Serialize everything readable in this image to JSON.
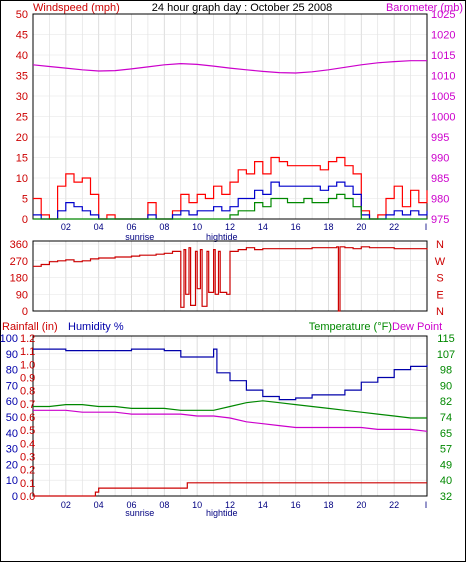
{
  "chart_data": [
    {
      "type": "line",
      "title": "24 hour graph day : October 25 2008",
      "left_axis_label": "Windspeed (mph)",
      "right_axis_label": "Barometer (mb)",
      "ylim_left": [
        0,
        50
      ],
      "ylim_right": [
        975,
        1025
      ],
      "yticks_left": [
        "0",
        "5",
        "10",
        "15",
        "20",
        "25",
        "30",
        "35",
        "40",
        "45",
        "50"
      ],
      "yticks_right": [
        "975",
        "980",
        "985",
        "990",
        "995",
        "1000",
        "1005",
        "1010",
        "1015",
        "1020",
        "1025"
      ],
      "x_ticks": [
        "02",
        "04",
        "06",
        "08",
        "10",
        "12",
        "14",
        "16",
        "18",
        "20",
        "22"
      ],
      "x_end_tick": "I",
      "marker_labels": {
        "sunrise": "sunrise",
        "hightide": "hightide"
      },
      "grid": true,
      "colors": {
        "wind_gust": "#ff0000",
        "wind_avg": "#0000cc",
        "wind_low": "#008800",
        "barometer": "#cc00cc"
      },
      "series": [
        {
          "axis": "right",
          "x": [
            0,
            1,
            2,
            3,
            4,
            5,
            6,
            7,
            8,
            9,
            10,
            11,
            12,
            13,
            14,
            15,
            16,
            17,
            18,
            19,
            20,
            21,
            22,
            23,
            24
          ],
          "values": [
            1012.6,
            1012.2,
            1011.8,
            1011.4,
            1011.1,
            1011.2,
            1011.6,
            1012.1,
            1012.6,
            1012.9,
            1012.7,
            1012.3,
            1011.8,
            1011.4,
            1011.0,
            1010.7,
            1010.6,
            1010.9,
            1011.4,
            1012.0,
            1012.6,
            1013.1,
            1013.4,
            1013.6,
            1013.6
          ]
        },
        {
          "axis": "left",
          "x": [
            0,
            0.5,
            1,
            1.5,
            2,
            2.5,
            3,
            3.5,
            4,
            4.5,
            5,
            5.5,
            6,
            6.5,
            7,
            7.5,
            8,
            8.5,
            9,
            9.5,
            10,
            10.5,
            11,
            11.5,
            12,
            12.5,
            13,
            13.5,
            14,
            14.5,
            15,
            15.5,
            16,
            16.5,
            17,
            17.5,
            18,
            18.5,
            19,
            19.5,
            20,
            20.5,
            21,
            21.5,
            22,
            22.5,
            23,
            23.5,
            24
          ],
          "values": [
            5,
            1,
            0,
            8,
            11,
            9,
            10,
            6,
            0,
            1,
            0,
            0,
            0,
            0,
            4,
            0,
            0,
            2,
            6,
            4,
            6,
            5,
            8,
            6,
            9,
            12,
            11,
            14,
            11,
            15,
            14,
            13,
            13,
            13,
            13,
            12,
            14,
            15,
            13,
            11,
            2,
            0,
            1,
            5,
            8,
            3,
            7,
            4,
            7
          ]
        },
        {
          "axis": "left",
          "x": [
            0,
            0.5,
            1,
            1.5,
            2,
            2.5,
            3,
            3.5,
            4,
            4.5,
            5,
            5.5,
            6,
            6.5,
            7,
            7.5,
            8,
            8.5,
            9,
            9.5,
            10,
            10.5,
            11,
            11.5,
            12,
            12.5,
            13,
            13.5,
            14,
            14.5,
            15,
            15.5,
            16,
            16.5,
            17,
            17.5,
            18,
            18.5,
            19,
            19.5,
            20,
            20.5,
            21,
            21.5,
            22,
            22.5,
            23,
            23.5,
            24
          ],
          "values": [
            1,
            0,
            0,
            2,
            4,
            3,
            2,
            1,
            0,
            0,
            0,
            0,
            0,
            0,
            1,
            0,
            0,
            1,
            2,
            1,
            2,
            2,
            3,
            2,
            3,
            5,
            5,
            7,
            6,
            9,
            8,
            8,
            8,
            8,
            8,
            7,
            8,
            9,
            8,
            6,
            1,
            0,
            0,
            1,
            2,
            1,
            2,
            1,
            2
          ]
        },
        {
          "axis": "left",
          "x": [
            0,
            0.5,
            1,
            1.5,
            2,
            2.5,
            3,
            3.5,
            4,
            4.5,
            5,
            5.5,
            6,
            6.5,
            7,
            7.5,
            8,
            8.5,
            9,
            9.5,
            10,
            10.5,
            11,
            11.5,
            12,
            12.5,
            13,
            13.5,
            14,
            14.5,
            15,
            15.5,
            16,
            16.5,
            17,
            17.5,
            18,
            18.5,
            19,
            19.5,
            20,
            20.5,
            21,
            21.5,
            22,
            22.5,
            23,
            23.5,
            24
          ],
          "values": [
            0,
            0,
            0,
            0,
            0,
            0,
            0,
            0,
            0,
            0,
            0,
            0,
            0,
            0,
            0,
            0,
            0,
            0,
            0,
            0,
            0,
            0,
            0,
            0,
            1,
            2,
            2,
            4,
            3,
            5,
            5,
            4,
            4,
            5,
            4,
            4,
            5,
            6,
            5,
            3,
            0,
            0,
            0,
            0,
            0,
            0,
            0,
            0,
            0
          ]
        }
      ]
    },
    {
      "type": "line",
      "title": "",
      "ylim": [
        0,
        360
      ],
      "yticks": [
        "0",
        "90",
        "180",
        "270",
        "360"
      ],
      "direction_labels": [
        "N",
        "W",
        "S",
        "E",
        "N"
      ],
      "colors": {
        "direction": "#cc0000"
      },
      "series": [
        {
          "x": [
            0,
            0.5,
            1,
            1.5,
            2,
            2.5,
            3,
            3.5,
            4,
            4.5,
            5,
            5.5,
            6,
            6.5,
            7,
            7.5,
            8,
            8.5,
            8.9,
            9,
            9.2,
            9.3,
            9.5,
            9.6,
            9.9,
            10,
            10.2,
            10.3,
            10.6,
            10.7,
            11,
            11.1,
            11.3,
            11.4,
            11.8,
            12,
            12.5,
            13,
            13.5,
            14,
            15,
            16,
            17,
            18,
            18.5,
            18.6,
            18.7,
            19,
            19.5,
            20,
            20.5,
            21,
            22,
            23,
            24
          ],
          "values": [
            240,
            250,
            265,
            270,
            275,
            265,
            270,
            280,
            285,
            285,
            290,
            290,
            295,
            300,
            300,
            305,
            310,
            320,
            320,
            20,
            330,
            90,
            340,
            30,
            320,
            120,
            330,
            25,
            320,
            100,
            330,
            90,
            320,
            100,
            90,
            320,
            330,
            340,
            330,
            335,
            335,
            335,
            340,
            340,
            345,
            0,
            345,
            340,
            335,
            345,
            340,
            340,
            335,
            335,
            330
          ]
        }
      ]
    },
    {
      "type": "line",
      "title": "",
      "left_axis_label": "Rainfall (in)",
      "humidity_label": "Humidity %",
      "right_axis_label": "Temperature (°F)",
      "right_axis_label_2": "Dew Point",
      "ylim_humidity": [
        0,
        100
      ],
      "ylim_rain": [
        0,
        1.2
      ],
      "ylim_temp": [
        32,
        115
      ],
      "yticks_humidity": [
        "0",
        "10",
        "20",
        "30",
        "40",
        "50",
        "60",
        "70",
        "80",
        "90",
        "100"
      ],
      "yticks_rain": [
        "0.0",
        "0.1",
        "0.2",
        "0.3",
        "0.4",
        "0.5",
        "0.6",
        "0.7",
        "0.8",
        "0.9",
        "1.0",
        "1.1",
        "1.2"
      ],
      "yticks_temp": [
        "32",
        "40",
        "49",
        "57",
        "65",
        "74",
        "82",
        "90",
        "98",
        "107",
        "115"
      ],
      "x_ticks": [
        "02",
        "04",
        "06",
        "08",
        "10",
        "12",
        "14",
        "16",
        "18",
        "20",
        "22"
      ],
      "x_end_tick": "I",
      "marker_labels": {
        "sunrise": "sunrise",
        "hightide": "hightide"
      },
      "grid": true,
      "colors": {
        "humidity": "#0000aa",
        "temperature": "#008800",
        "dewpoint": "#cc00cc",
        "rain": "#cc0000"
      },
      "series": [
        {
          "axis": "humidity",
          "x": [
            0,
            1,
            2,
            3,
            4,
            5,
            6,
            7,
            8,
            9,
            10,
            11,
            11.2,
            12,
            13,
            14,
            15,
            16,
            17,
            18,
            19,
            20,
            21,
            22,
            23,
            24
          ],
          "values": [
            93,
            93,
            92,
            92,
            92,
            92,
            93,
            93,
            92,
            88,
            88,
            93,
            78,
            73,
            67,
            63,
            61,
            62,
            64,
            64,
            67,
            72,
            75,
            80,
            82,
            83
          ]
        },
        {
          "axis": "temp",
          "x": [
            0,
            1,
            2,
            3,
            4,
            5,
            6,
            7,
            8,
            9,
            10,
            11,
            12,
            13,
            14,
            15,
            16,
            17,
            18,
            19,
            20,
            21,
            22,
            23,
            24
          ],
          "values": [
            79,
            79,
            80,
            80,
            79,
            79,
            78,
            78,
            78,
            77,
            77,
            77,
            79,
            81,
            82,
            81,
            80,
            79,
            78,
            77,
            76,
            75,
            74,
            73,
            73
          ]
        },
        {
          "axis": "temp",
          "x": [
            0,
            1,
            2,
            3,
            4,
            5,
            6,
            7,
            8,
            9,
            10,
            11,
            12,
            13,
            14,
            15,
            16,
            17,
            18,
            19,
            20,
            21,
            22,
            23,
            24
          ],
          "values": [
            77,
            77,
            77,
            76,
            76,
            76,
            75,
            75,
            75,
            75,
            74,
            74,
            73,
            71,
            70,
            69,
            68,
            68,
            68,
            68,
            68,
            67,
            67,
            67,
            66
          ]
        },
        {
          "axis": "rain",
          "x": [
            0,
            1,
            2,
            3,
            3.8,
            4,
            5,
            6,
            7,
            8,
            9.2,
            9.4,
            10,
            11,
            12,
            14,
            16,
            18,
            20,
            22,
            23,
            24
          ],
          "values": [
            0,
            0,
            0,
            0,
            0.03,
            0.06,
            0.06,
            0.06,
            0.06,
            0.06,
            0.06,
            0.1,
            0.1,
            0.1,
            0.1,
            0.1,
            0.1,
            0.1,
            0.1,
            0.1,
            0.1,
            0.1
          ]
        }
      ]
    }
  ]
}
